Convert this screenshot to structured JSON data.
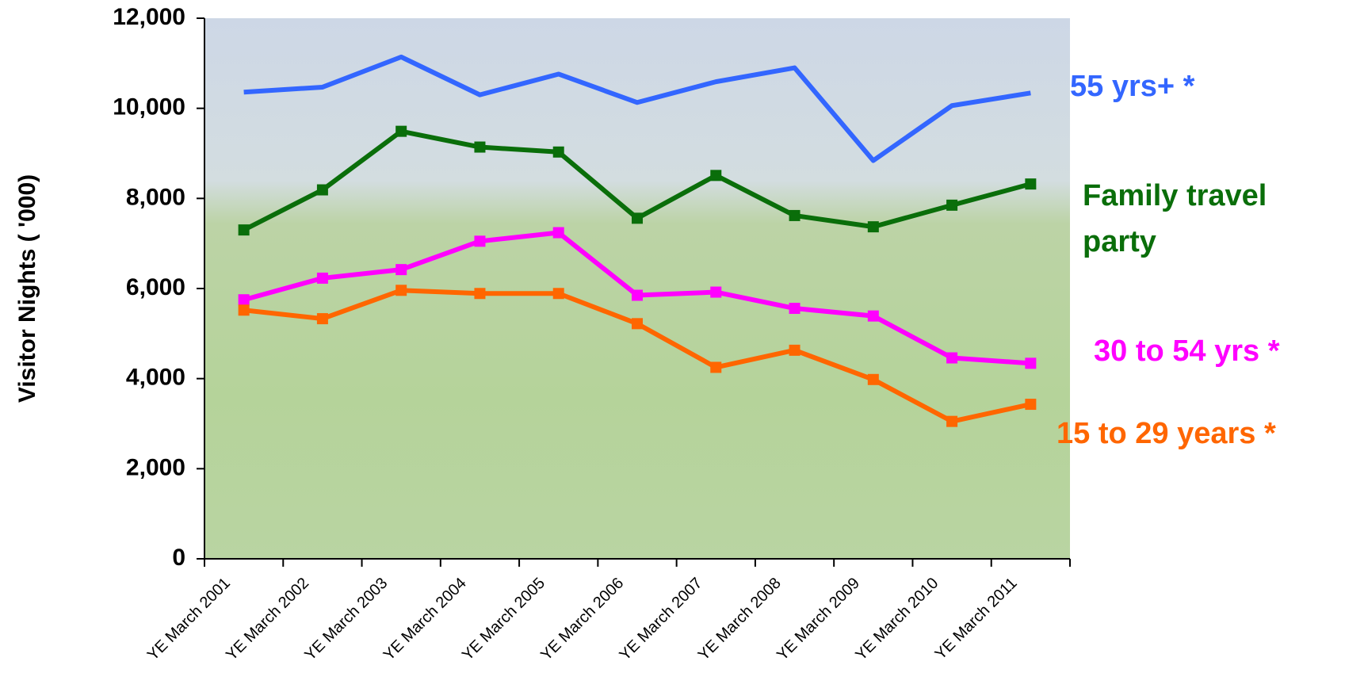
{
  "chart_data": {
    "type": "line",
    "y_label": "Visitor Nights ( '000)",
    "categories": [
      "YE March 2001",
      "YE March 2002",
      "YE March 2003",
      "YE March 2004",
      "YE March 2005",
      "YE March 2006",
      "YE March 2007",
      "YE March 2008",
      "YE March 2009",
      "YE March 2010",
      "YE March 2011"
    ],
    "series": [
      {
        "name": "55 yrs+ *",
        "color": "#3366ff",
        "marker": false,
        "values": [
          10360,
          10470,
          11140,
          10300,
          10760,
          10130,
          10590,
          10900,
          8840,
          10060,
          10340
        ]
      },
      {
        "name": "Family travel party",
        "color": "#0a6e0a",
        "marker": true,
        "values": [
          7300,
          8190,
          9490,
          9140,
          9030,
          7560,
          8510,
          7620,
          7370,
          7850,
          8320
        ]
      },
      {
        "name": "30 to 54 yrs *",
        "color": "#ff00ff",
        "marker": true,
        "values": [
          5750,
          6230,
          6420,
          7050,
          7240,
          5850,
          5920,
          5560,
          5390,
          4460,
          4340
        ]
      },
      {
        "name": "15 to 29 years *",
        "color": "#ff6600",
        "marker": true,
        "values": [
          5520,
          5330,
          5960,
          5890,
          5890,
          5220,
          4250,
          4630,
          3980,
          3050,
          3430
        ]
      }
    ],
    "ylim": [
      0,
      12000
    ],
    "yticks": [
      0,
      {
        "value": 2000,
        "label": "2,000"
      },
      {
        "value": 4000,
        "label": "4,000"
      },
      {
        "value": 6000,
        "label": "6,000"
      },
      {
        "value": 8000,
        "label": "8,000"
      },
      {
        "value": 10000,
        "label": "10,000"
      },
      {
        "value": 12000,
        "label": "12,000"
      }
    ],
    "grid": false
  }
}
